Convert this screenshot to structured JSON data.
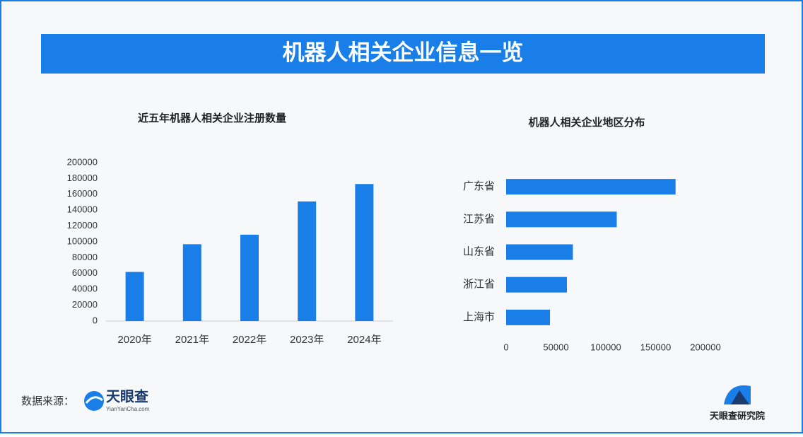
{
  "header": {
    "title": "机器人相关企业信息一览"
  },
  "chart_data": [
    {
      "type": "bar",
      "title": "近五年机器人相关企业注册数量",
      "categories": [
        "2020年",
        "2021年",
        "2022年",
        "2023年",
        "2024年"
      ],
      "values": [
        62000,
        97000,
        109000,
        151000,
        173000
      ],
      "color": "#1a7ee8",
      "ylim": [
        0,
        200000
      ],
      "yticks": [
        0,
        20000,
        40000,
        60000,
        80000,
        100000,
        120000,
        140000,
        160000,
        180000,
        200000
      ],
      "grid": false
    },
    {
      "type": "barh",
      "title": "机器人相关企业地区分布",
      "categories": [
        "广东省",
        "江苏省",
        "山东省",
        "浙江省",
        "上海市"
      ],
      "values": [
        170000,
        111000,
        67000,
        61000,
        44000
      ],
      "color": "#1a7ee8",
      "xlim": [
        0,
        200000
      ],
      "xticks": [
        0,
        50000,
        100000,
        150000,
        200000
      ],
      "grid": false
    }
  ],
  "footer": {
    "source_label": "数据来源：",
    "logo_name": "天眼查",
    "logo_url": "YianYanCha.com",
    "institute": "天眼查研究院"
  }
}
